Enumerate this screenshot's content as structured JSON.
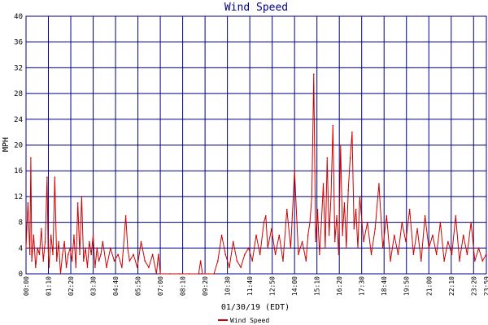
{
  "chart_data": {
    "type": "line",
    "title": "Wind Speed",
    "xlabel": "01/30/19 (EDT)",
    "ylabel": "MPH",
    "ylim": [
      0,
      40
    ],
    "y_ticks": [
      "0",
      "4",
      "8",
      "12",
      "16",
      "20",
      "24",
      "28",
      "32",
      "36",
      "40"
    ],
    "x_range_hours": [
      0,
      24
    ],
    "x_ticks": [
      "00:00",
      "01:10",
      "02:20",
      "03:30",
      "04:40",
      "05:50",
      "07:00",
      "08:10",
      "09:20",
      "10:30",
      "11:40",
      "12:50",
      "14:00",
      "15:10",
      "16:20",
      "17:30",
      "18:40",
      "19:50",
      "21:00",
      "22:10",
      "23:20",
      "23:59"
    ],
    "grid": true,
    "legend_position": "bottom-center",
    "colors": {
      "series": "#cc0000",
      "grid": "#000080",
      "axis_text": "#000000",
      "title": "#000080"
    },
    "series": [
      {
        "name": "Wind Speed",
        "approximate_x_hours": [
          0.0,
          0.1,
          0.2,
          0.25,
          0.3,
          0.4,
          0.5,
          0.6,
          0.7,
          0.8,
          0.9,
          1.0,
          1.1,
          1.15,
          1.2,
          1.3,
          1.4,
          1.5,
          1.6,
          1.7,
          1.8,
          1.9,
          2.0,
          2.1,
          2.2,
          2.3,
          2.4,
          2.5,
          2.6,
          2.7,
          2.8,
          2.9,
          3.0,
          3.1,
          3.2,
          3.3,
          3.4,
          3.5,
          3.6,
          3.7,
          3.8,
          3.9,
          4.0,
          4.2,
          4.4,
          4.6,
          4.8,
          5.0,
          5.2,
          5.3,
          5.4,
          5.6,
          5.8,
          6.0,
          6.2,
          6.4,
          6.6,
          6.8,
          6.9,
          7.0,
          7.5,
          8.0,
          8.5,
          9.0,
          9.1,
          9.2,
          9.5,
          9.8,
          10.0,
          10.2,
          10.4,
          10.6,
          10.8,
          11.0,
          11.2,
          11.4,
          11.6,
          11.8,
          12.0,
          12.2,
          12.4,
          12.5,
          12.6,
          12.8,
          13.0,
          13.2,
          13.4,
          13.6,
          13.8,
          14.0,
          14.2,
          14.4,
          14.6,
          14.7,
          14.8,
          14.9,
          15.0,
          15.1,
          15.2,
          15.3,
          15.4,
          15.5,
          15.6,
          15.7,
          15.8,
          15.9,
          16.0,
          16.1,
          16.2,
          16.3,
          16.4,
          16.5,
          16.6,
          16.7,
          16.8,
          16.9,
          17.0,
          17.1,
          17.2,
          17.3,
          17.4,
          17.6,
          17.8,
          18.0,
          18.2,
          18.4,
          18.6,
          18.8,
          19.0,
          19.2,
          19.4,
          19.6,
          19.8,
          20.0,
          20.2,
          20.4,
          20.6,
          20.8,
          21.0,
          21.2,
          21.4,
          21.6,
          21.8,
          22.0,
          22.2,
          22.4,
          22.6,
          22.8,
          23.0,
          23.2,
          23.4,
          23.6,
          23.8,
          23.99
        ],
        "approximate_values": [
          4,
          11,
          3,
          18,
          2,
          6,
          1,
          4,
          3,
          7,
          2,
          5,
          15,
          4,
          1,
          6,
          3,
          15,
          2,
          5,
          0,
          3,
          5,
          1,
          3,
          4,
          2,
          6,
          1,
          11,
          3,
          12,
          2,
          4,
          1,
          5,
          3,
          6,
          1,
          4,
          2,
          3,
          5,
          1,
          4,
          2,
          3,
          1,
          9,
          4,
          2,
          3,
          1,
          5,
          2,
          1,
          3,
          0,
          3,
          0,
          0,
          0,
          0,
          0,
          2,
          0,
          0,
          0,
          2,
          6,
          3,
          1,
          5,
          2,
          1,
          3,
          4,
          2,
          6,
          3,
          8,
          9,
          4,
          7,
          3,
          6,
          2,
          10,
          4,
          16,
          3,
          5,
          2,
          6,
          8,
          12,
          31,
          5,
          10,
          3,
          8,
          14,
          4,
          18,
          6,
          12,
          23,
          5,
          9,
          3,
          20,
          6,
          11,
          4,
          13,
          18,
          22,
          7,
          10,
          4,
          12,
          5,
          8,
          3,
          7,
          14,
          4,
          9,
          2,
          6,
          3,
          8,
          5,
          10,
          3,
          7,
          2,
          9,
          4,
          6,
          3,
          8,
          2,
          5,
          3,
          9,
          2,
          6,
          3,
          8,
          2,
          4,
          2,
          3
        ]
      }
    ]
  }
}
